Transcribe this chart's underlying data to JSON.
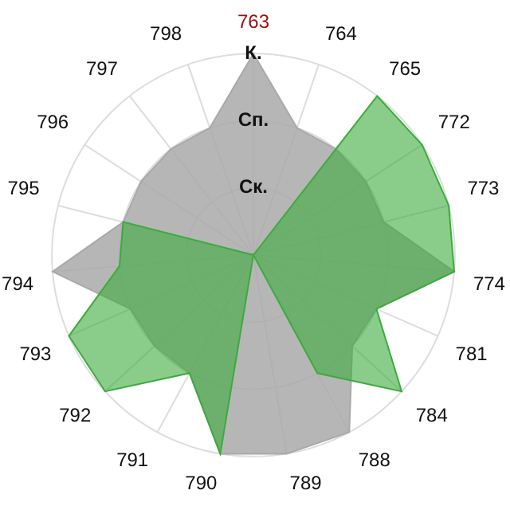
{
  "chart_data": {
    "type": "radar",
    "categories": [
      "763",
      "764",
      "765",
      "772",
      "773",
      "774",
      "781",
      "784",
      "788",
      "789",
      "790",
      "791",
      "792",
      "793",
      "794",
      "795",
      "796",
      "797",
      "798"
    ],
    "series": [
      {
        "color": "#a9a9a9",
        "values": [
          3,
          2,
          2,
          2,
          2,
          3,
          2,
          2,
          3,
          3,
          3,
          2,
          2,
          2,
          3,
          2,
          2,
          2,
          2
        ]
      },
      {
        "color": "#3cab3c",
        "values": [
          0,
          0,
          3,
          3,
          3,
          3,
          2,
          3,
          2,
          0,
          3,
          2,
          3,
          3,
          2,
          2,
          0,
          0,
          0
        ]
      }
    ],
    "ylim": [
      0,
      3
    ],
    "yticks": [
      {
        "value": 1,
        "label": "Ск."
      },
      {
        "value": 2,
        "label": "Сп."
      },
      {
        "value": 3,
        "label": "К."
      }
    ],
    "grid": true,
    "legend": false,
    "marker": "none"
  }
}
